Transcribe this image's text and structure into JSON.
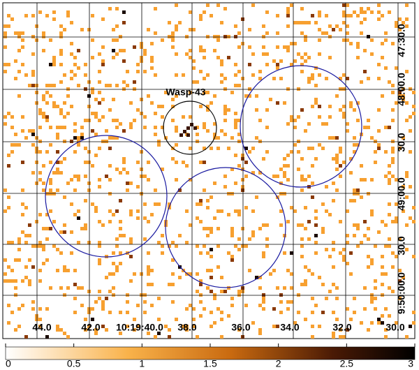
{
  "image": {
    "source_label": "Wasp-43",
    "ra_labels": [
      "44.0",
      "42.0",
      "10:19:40.0",
      "38.0",
      "36.0",
      "34.0",
      "32.0",
      "30.0"
    ],
    "dec_labels": [
      "47:30.0",
      "48:00.0",
      "30.0",
      "49:00.0",
      "30.0",
      "9:50:00.0"
    ]
  },
  "colorbar": {
    "lim": [
      0,
      3
    ],
    "ticks": [
      0,
      0.5,
      1,
      1.5,
      2,
      2.5,
      3
    ]
  }
}
